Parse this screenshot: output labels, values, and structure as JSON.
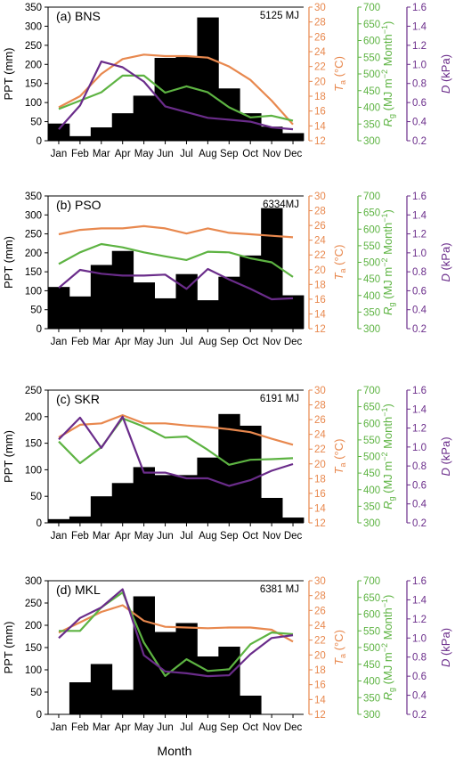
{
  "figure": {
    "ylabel_ppt": "PPT (mm)",
    "ylabel_ta": "T",
    "ylabel_ta_sub": "a",
    "ylabel_ta_unit": " (°C)",
    "ylabel_rg": "R",
    "ylabel_rg_sub": "g",
    "ylabel_rg_unit": " (MJ m",
    "ylabel_rg_exp1": "−2",
    "ylabel_rg_mid": " Month",
    "ylabel_rg_exp2": "−1",
    "ylabel_rg_end": ")",
    "ylabel_d": "D",
    "ylabel_d_unit": " (kPa)",
    "xlabel": "Month",
    "colors": {
      "ta": "#E8884E",
      "rg": "#5DB342",
      "d": "#6A2C8A",
      "bar": "#000000"
    }
  },
  "chart_data": [
    {
      "type": "bar",
      "title": "(a) BNS",
      "annotation": "5125 MJ",
      "categories": [
        "Jan",
        "Feb",
        "Mar",
        "Apr",
        "May",
        "Jun",
        "Jul",
        "Aug",
        "Sep",
        "Oct",
        "Nov",
        "Dec"
      ],
      "ppt": {
        "ylim": [
          0,
          350
        ],
        "ticks": [
          0,
          50,
          100,
          150,
          200,
          250,
          300,
          350
        ],
        "values": [
          45,
          12,
          35,
          72,
          118,
          217,
          220,
          323,
          137,
          72,
          37,
          20
        ]
      },
      "ta": {
        "ylim": [
          12,
          30
        ],
        "ticks": [
          12,
          14,
          16,
          18,
          20,
          22,
          24,
          26,
          28,
          30
        ],
        "values": [
          16.5,
          18.0,
          21.0,
          23.0,
          23.6,
          23.4,
          23.4,
          23.2,
          22.0,
          20.2,
          17.4,
          14.2
        ]
      },
      "rg": {
        "ylim": [
          300,
          700
        ],
        "ticks": [
          300,
          350,
          400,
          450,
          500,
          550,
          600,
          650,
          700
        ],
        "values": [
          395,
          420,
          445,
          495,
          495,
          444,
          463,
          445,
          400,
          370,
          375,
          360
        ]
      },
      "d": {
        "ylim": [
          0.2,
          1.6
        ],
        "ticks": [
          0.2,
          0.4,
          0.6,
          0.8,
          1.0,
          1.2,
          1.4,
          1.6
        ],
        "values": [
          0.32,
          0.57,
          1.03,
          0.97,
          0.82,
          0.56,
          0.5,
          0.44,
          0.42,
          0.4,
          0.34,
          0.32
        ]
      }
    },
    {
      "type": "bar",
      "title": "(b) PSO",
      "annotation": "6334MJ",
      "categories": [
        "Jan",
        "Feb",
        "Mar",
        "Apr",
        "May",
        "Jun",
        "Jul",
        "Aug",
        "Sep",
        "Oct",
        "Nov",
        "Dec"
      ],
      "ppt": {
        "ylim": [
          0,
          350
        ],
        "ticks": [
          0,
          50,
          100,
          150,
          200,
          250,
          300,
          350
        ],
        "values": [
          110,
          85,
          168,
          205,
          122,
          80,
          144,
          75,
          137,
          193,
          318,
          88
        ]
      },
      "ta": {
        "ylim": [
          12,
          30
        ],
        "ticks": [
          12,
          14,
          16,
          18,
          20,
          22,
          24,
          26,
          28,
          30
        ],
        "values": [
          24.8,
          25.4,
          25.6,
          25.6,
          25.9,
          25.6,
          24.9,
          25.6,
          25.0,
          24.8,
          24.6,
          24.4
        ]
      },
      "rg": {
        "ylim": [
          300,
          700
        ],
        "ticks": [
          300,
          350,
          400,
          450,
          500,
          550,
          600,
          650,
          700
        ],
        "values": [
          495,
          530,
          555,
          545,
          530,
          518,
          507,
          532,
          530,
          512,
          500,
          456
        ]
      },
      "d": {
        "ylim": [
          0.2,
          1.6
        ],
        "ticks": [
          0.2,
          0.4,
          0.6,
          0.8,
          1.0,
          1.2,
          1.4,
          1.6
        ],
        "values": [
          0.63,
          0.82,
          0.78,
          0.76,
          0.76,
          0.77,
          0.62,
          0.83,
          0.72,
          0.62,
          0.51,
          0.52
        ]
      }
    },
    {
      "type": "bar",
      "title": "(c) SKR",
      "annotation": "6191 MJ",
      "categories": [
        "Jan",
        "Feb",
        "Mar",
        "Apr",
        "May",
        "Jun",
        "Jul",
        "Aug",
        "Sep",
        "Oct",
        "Nov",
        "Dec"
      ],
      "ppt": {
        "ylim": [
          0,
          250
        ],
        "ticks": [
          0,
          50,
          100,
          150,
          200,
          250
        ],
        "values": [
          7,
          12,
          50,
          75,
          105,
          90,
          90,
          123,
          205,
          183,
          47,
          10
        ]
      },
      "ta": {
        "ylim": [
          12,
          30
        ],
        "ticks": [
          12,
          14,
          16,
          18,
          20,
          22,
          24,
          26,
          28,
          30
        ],
        "values": [
          23.6,
          25.3,
          25.5,
          26.6,
          25.5,
          25.5,
          25.2,
          25.0,
          24.7,
          24.3,
          23.4,
          22.6
        ]
      },
      "rg": {
        "ylim": [
          300,
          700
        ],
        "ticks": [
          300,
          350,
          400,
          450,
          500,
          550,
          600,
          650,
          700
        ],
        "values": [
          545,
          480,
          528,
          615,
          590,
          557,
          560,
          520,
          475,
          490,
          492,
          495
        ]
      },
      "d": {
        "ylim": [
          0.2,
          1.6
        ],
        "ticks": [
          0.2,
          0.4,
          0.6,
          0.8,
          1.0,
          1.2,
          1.4,
          1.6
        ],
        "values": [
          1.08,
          1.31,
          0.99,
          1.32,
          0.73,
          0.73,
          0.67,
          0.67,
          0.59,
          0.65,
          0.75,
          0.82
        ]
      }
    },
    {
      "type": "bar",
      "title": "(d) MKL",
      "annotation": "6381 MJ",
      "categories": [
        "Jan",
        "Feb",
        "Mar",
        "Apr",
        "May",
        "Jun",
        "Jul",
        "Aug",
        "Sep",
        "Oct",
        "Nov",
        "Dec"
      ],
      "ppt": {
        "ylim": [
          0,
          300
        ],
        "ticks": [
          0,
          50,
          100,
          150,
          200,
          250,
          300
        ],
        "values": [
          0,
          72,
          113,
          55,
          265,
          185,
          205,
          130,
          152,
          42,
          0,
          0
        ]
      },
      "ta": {
        "ylim": [
          12,
          30
        ],
        "ticks": [
          12,
          14,
          16,
          18,
          20,
          22,
          24,
          26,
          28,
          30
        ],
        "values": [
          23.0,
          24.4,
          25.8,
          26.7,
          24.6,
          23.8,
          23.7,
          23.6,
          23.7,
          23.7,
          23.4,
          21.8
        ]
      },
      "rg": {
        "ylim": [
          300,
          700
        ],
        "ticks": [
          300,
          350,
          400,
          450,
          500,
          550,
          600,
          650,
          700
        ],
        "values": [
          550,
          550,
          620,
          665,
          515,
          415,
          465,
          430,
          435,
          510,
          545,
          540
        ]
      },
      "d": {
        "ylim": [
          0.2,
          1.6
        ],
        "ticks": [
          0.2,
          0.4,
          0.6,
          0.8,
          1.0,
          1.2,
          1.4,
          1.6
        ],
        "values": [
          1.0,
          1.21,
          1.32,
          1.51,
          0.82,
          0.65,
          0.63,
          0.6,
          0.61,
          0.83,
          1.0,
          1.03
        ]
      }
    }
  ]
}
